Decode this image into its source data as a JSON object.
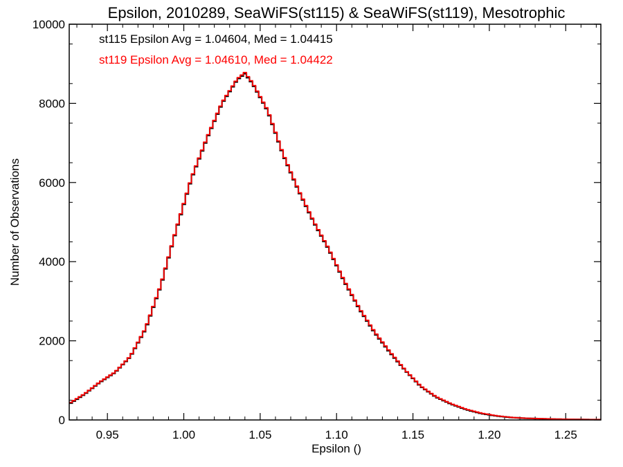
{
  "chart_data": {
    "type": "line",
    "title": "Epsilon, 2010289, SeaWiFS(st115) & SeaWiFS(st119), Mesotrophic",
    "xlabel": "Epsilon ()",
    "ylabel": "Number of Observations",
    "xlim": [
      0.925,
      1.273
    ],
    "ylim": [
      0,
      10000
    ],
    "x_ticks": [
      "0.95",
      "1.00",
      "1.05",
      "1.10",
      "1.15",
      "1.20",
      "1.25"
    ],
    "y_ticks": [
      "0",
      "2000",
      "4000",
      "6000",
      "8000",
      "10000"
    ],
    "annotations": [
      {
        "text": "st115 Epsilon Avg = 1.04604, Med = 1.04415",
        "color": "#000000"
      },
      {
        "text": "st119 Epsilon Avg = 1.04610, Med = 1.04422",
        "color": "#ff0000"
      }
    ],
    "series": [
      {
        "color": "#000000",
        "x": [
          0.925,
          0.935,
          0.945,
          0.955,
          0.965,
          0.975,
          0.985,
          0.995,
          1.005,
          1.015,
          1.025,
          1.035,
          1.04,
          1.045,
          1.055,
          1.065,
          1.075,
          1.085,
          1.095,
          1.105,
          1.115,
          1.125,
          1.135,
          1.145,
          1.155,
          1.165,
          1.175,
          1.185,
          1.195,
          1.205,
          1.215,
          1.225,
          1.235,
          1.245,
          1.255,
          1.265,
          1.273
        ],
        "y": [
          400,
          650,
          950,
          1200,
          1600,
          2300,
          3400,
          4800,
          6100,
          7100,
          8000,
          8600,
          8750,
          8500,
          7800,
          6700,
          5800,
          5000,
          4300,
          3500,
          2800,
          2200,
          1700,
          1250,
          850,
          580,
          400,
          260,
          160,
          100,
          60,
          40,
          30,
          20,
          15,
          10,
          10
        ]
      },
      {
        "color": "#ff0000",
        "x": [
          0.925,
          0.935,
          0.945,
          0.955,
          0.965,
          0.975,
          0.985,
          0.995,
          1.005,
          1.015,
          1.025,
          1.035,
          1.04,
          1.045,
          1.055,
          1.065,
          1.075,
          1.085,
          1.095,
          1.105,
          1.115,
          1.125,
          1.135,
          1.145,
          1.155,
          1.165,
          1.175,
          1.185,
          1.195,
          1.205,
          1.215,
          1.225,
          1.235,
          1.245,
          1.255,
          1.265,
          1.273
        ],
        "y": [
          420,
          660,
          960,
          1210,
          1610,
          2320,
          3420,
          4820,
          6120,
          7120,
          8020,
          8620,
          8780,
          8520,
          7820,
          6720,
          5820,
          5020,
          4320,
          3520,
          2820,
          2220,
          1720,
          1260,
          860,
          590,
          410,
          270,
          170,
          105,
          62,
          42,
          31,
          21,
          16,
          11,
          11
        ]
      }
    ]
  }
}
